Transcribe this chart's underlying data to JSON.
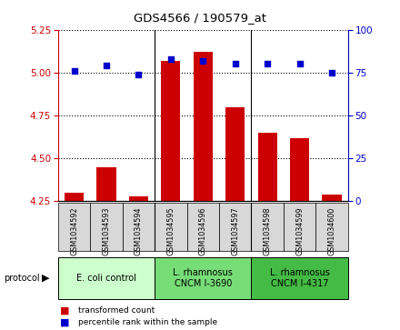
{
  "title": "GDS4566 / 190579_at",
  "samples": [
    "GSM1034592",
    "GSM1034593",
    "GSM1034594",
    "GSM1034595",
    "GSM1034596",
    "GSM1034597",
    "GSM1034598",
    "GSM1034599",
    "GSM1034600"
  ],
  "transformed_count": [
    4.3,
    4.45,
    4.28,
    5.07,
    5.12,
    4.8,
    4.65,
    4.62,
    4.29
  ],
  "percentile_rank": [
    76,
    79,
    74,
    83,
    82,
    80,
    80,
    80,
    75
  ],
  "ylim_left": [
    4.25,
    5.25
  ],
  "ylim_right": [
    0,
    100
  ],
  "yticks_left": [
    4.25,
    4.5,
    4.75,
    5.0,
    5.25
  ],
  "yticks_right": [
    0,
    25,
    50,
    75,
    100
  ],
  "bar_color": "#cc0000",
  "dot_color": "#0000cc",
  "group_colors": [
    "#ccffcc",
    "#77dd77",
    "#44bb44"
  ],
  "group_labels": [
    "E. coli control",
    "L. rhamnosus\nCNCM I-3690",
    "L. rhamnosus\nCNCM I-4317"
  ],
  "group_starts": [
    0,
    3,
    6
  ],
  "group_ends": [
    3,
    6,
    9
  ],
  "legend_bar_label": "transformed count",
  "legend_dot_label": "percentile rank within the sample",
  "tick_color_left": "#cc0000",
  "tick_color_right": "#0000cc"
}
